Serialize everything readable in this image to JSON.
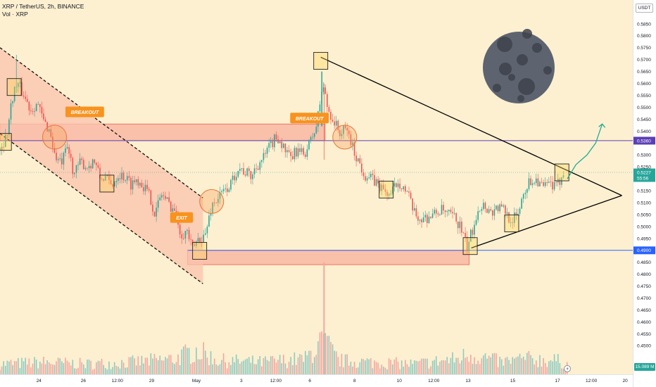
{
  "header": {
    "symbol_line": "XRP / TetherUS, 2h, BINANCE",
    "volume_line": "Vol · XRP"
  },
  "currency_button": "USDT",
  "volume_readout": "15.089 M",
  "annotations": [
    {
      "text": "BREAKOUT",
      "time": 3.0,
      "price": 0.5503
    },
    {
      "text": "BREAKOUT",
      "time": 13.3,
      "price": 0.5477
    },
    {
      "text": "EXIT",
      "time": 7.8,
      "price": 0.506
    }
  ],
  "price_badges": [
    {
      "text": "0.5360",
      "price": 0.536,
      "color": "#5b3fb5"
    },
    {
      "text": "0.4900",
      "price": 0.49,
      "color": "#2962ff"
    }
  ],
  "last_price_badge": {
    "price_text": "0.5227",
    "countdown_text": "55:56",
    "price": 0.5227,
    "color": "#26a69a"
  },
  "colors": {
    "background": "#fdf0d0",
    "zone_fill": "#f8b7a3",
    "zone_stroke": "#f05d4a",
    "channel_fill": "#f9c3ae",
    "up": "#26a69a",
    "down": "#ef5350",
    "vol_up": "#8ccbc3",
    "vol_down": "#f4a5a1",
    "purple_line": "#5b3fb5",
    "blue_line": "#2962ff",
    "moon": "#5d6470",
    "arrow": "#22ab94"
  },
  "icons": {
    "moon": "moon-icon",
    "lightning": "lightning-icon"
  },
  "chart_data": {
    "type": "candlestick",
    "x_unit": "days since 22 April",
    "xlim": [
      0,
      29.0
    ],
    "ylim": [
      0.438,
      0.595
    ],
    "price_ticks": [
      "0.5850",
      "0.5800",
      "0.5750",
      "0.5700",
      "0.5650",
      "0.5600",
      "0.5550",
      "0.5500",
      "0.5450",
      "0.5400",
      "0.5350",
      "0.5300",
      "0.5250",
      "0.5200",
      "0.5150",
      "0.5100",
      "0.5050",
      "0.5000",
      "0.4950",
      "0.4900",
      "0.4850",
      "0.4800",
      "0.4750",
      "0.4700",
      "0.4650",
      "0.4600",
      "0.4550",
      "0.4500"
    ],
    "time_ticks": [
      {
        "label": "24",
        "t": 1.78
      },
      {
        "label": "26",
        "t": 3.82
      },
      {
        "label": "12:00",
        "t": 5.38
      },
      {
        "label": "29",
        "t": 6.95
      },
      {
        "label": "May",
        "t": 9.0
      },
      {
        "label": "3",
        "t": 11.06
      },
      {
        "label": "12:00",
        "t": 12.64
      },
      {
        "label": "6",
        "t": 14.2
      },
      {
        "label": "8",
        "t": 16.25
      },
      {
        "label": "10",
        "t": 18.3
      },
      {
        "label": "12:00",
        "t": 19.88
      },
      {
        "label": "13",
        "t": 21.45
      },
      {
        "label": "15",
        "t": 23.5
      },
      {
        "label": "17",
        "t": 25.55
      },
      {
        "label": "12:00",
        "t": 27.1
      },
      {
        "label": "20",
        "t": 28.65
      }
    ],
    "close_path": [
      [
        0.0,
        0.533
      ],
      [
        0.3,
        0.538
      ],
      [
        0.6,
        0.556
      ],
      [
        0.8,
        0.56
      ],
      [
        1.1,
        0.555
      ],
      [
        1.4,
        0.549
      ],
      [
        1.7,
        0.552
      ],
      [
        2.0,
        0.544
      ],
      [
        2.3,
        0.54
      ],
      [
        2.5,
        0.53
      ],
      [
        2.8,
        0.526
      ],
      [
        3.1,
        0.533
      ],
      [
        3.4,
        0.522
      ],
      [
        3.7,
        0.527
      ],
      [
        4.0,
        0.525
      ],
      [
        4.3,
        0.528
      ],
      [
        4.6,
        0.52
      ],
      [
        4.8,
        0.521
      ],
      [
        5.1,
        0.517
      ],
      [
        5.4,
        0.522
      ],
      [
        5.7,
        0.521
      ],
      [
        6.0,
        0.518
      ],
      [
        6.3,
        0.52
      ],
      [
        6.6,
        0.517
      ],
      [
        6.9,
        0.512
      ],
      [
        7.1,
        0.505
      ],
      [
        7.4,
        0.514
      ],
      [
        7.7,
        0.51
      ],
      [
        8.0,
        0.507
      ],
      [
        8.3,
        0.497
      ],
      [
        8.6,
        0.498
      ],
      [
        8.8,
        0.49
      ],
      [
        9.1,
        0.495
      ],
      [
        9.4,
        0.496
      ],
      [
        9.7,
        0.509
      ],
      [
        10.0,
        0.512
      ],
      [
        10.3,
        0.515
      ],
      [
        10.6,
        0.518
      ],
      [
        10.9,
        0.525
      ],
      [
        11.2,
        0.523
      ],
      [
        11.5,
        0.521
      ],
      [
        11.8,
        0.526
      ],
      [
        12.1,
        0.529
      ],
      [
        12.4,
        0.534
      ],
      [
        12.7,
        0.538
      ],
      [
        13.0,
        0.533
      ],
      [
        13.3,
        0.528
      ],
      [
        13.6,
        0.532
      ],
      [
        13.9,
        0.53
      ],
      [
        14.2,
        0.535
      ],
      [
        14.5,
        0.542
      ],
      [
        14.8,
        0.56
      ],
      [
        15.0,
        0.55
      ],
      [
        15.3,
        0.544
      ],
      [
        15.6,
        0.539
      ],
      [
        15.9,
        0.541
      ],
      [
        16.2,
        0.532
      ],
      [
        16.5,
        0.526
      ],
      [
        16.7,
        0.522
      ],
      [
        17.0,
        0.52
      ],
      [
        17.3,
        0.518
      ],
      [
        17.6,
        0.515
      ],
      [
        17.9,
        0.513
      ],
      [
        18.2,
        0.519
      ],
      [
        18.4,
        0.518
      ],
      [
        18.7,
        0.513
      ],
      [
        19.0,
        0.505
      ],
      [
        19.3,
        0.503
      ],
      [
        19.6,
        0.504
      ],
      [
        19.9,
        0.505
      ],
      [
        20.2,
        0.507
      ],
      [
        20.5,
        0.505
      ],
      [
        20.8,
        0.504
      ],
      [
        21.1,
        0.5
      ],
      [
        21.4,
        0.491
      ],
      [
        21.7,
        0.5
      ],
      [
        21.9,
        0.508
      ],
      [
        22.2,
        0.509
      ],
      [
        22.5,
        0.506
      ],
      [
        22.8,
        0.508
      ],
      [
        23.1,
        0.507
      ],
      [
        23.4,
        0.503
      ],
      [
        23.7,
        0.504
      ],
      [
        24.0,
        0.515
      ],
      [
        24.3,
        0.519
      ],
      [
        24.6,
        0.52
      ],
      [
        24.9,
        0.516
      ],
      [
        25.2,
        0.518
      ],
      [
        25.5,
        0.516
      ],
      [
        25.8,
        0.5227
      ]
    ],
    "volume_path": [
      [
        0,
        0.3
      ],
      [
        2,
        0.35
      ],
      [
        4,
        0.3
      ],
      [
        6,
        0.35
      ],
      [
        8,
        0.45
      ],
      [
        9,
        0.7
      ],
      [
        10,
        0.4
      ],
      [
        12,
        0.35
      ],
      [
        14,
        0.45
      ],
      [
        14.8,
        1.0
      ],
      [
        15.5,
        0.4
      ],
      [
        17,
        0.35
      ],
      [
        19,
        0.3
      ],
      [
        21,
        0.45
      ],
      [
        21.5,
        0.6
      ],
      [
        23,
        0.35
      ],
      [
        24,
        0.45
      ],
      [
        25.5,
        0.4
      ],
      [
        26,
        0.3
      ]
    ],
    "volume_spike": {
      "time": 14.85,
      "top_price": 0.485
    },
    "volume_zone_top_price": 0.462,
    "zones": [
      {
        "name": "upper-supply-zone",
        "t1": 0.0,
        "t2": 14.9,
        "p1": 0.536,
        "p2": 0.543
      },
      {
        "name": "lower-demand-zone",
        "t1": 8.6,
        "t2": 21.5,
        "p1": 0.484,
        "p2": 0.49
      }
    ],
    "channel": {
      "upper": [
        [
          0.0,
          0.575
        ],
        [
          9.3,
          0.512
        ]
      ],
      "lower": [
        [
          0.0,
          0.539
        ],
        [
          9.3,
          0.476
        ]
      ],
      "fill_until_price": 0.476
    },
    "triangle": {
      "upper_start": [
        14.7,
        0.571
      ],
      "lower_start": [
        21.6,
        0.491
      ],
      "apex": [
        28.5,
        0.513
      ]
    },
    "horizontal_lines": [
      {
        "name": "purple-level-line",
        "price": 0.536,
        "t1": 0.0,
        "color": "#5b3fb5"
      },
      {
        "name": "blue-level-line",
        "price": 0.49,
        "t1": 8.6,
        "color": "#2962ff"
      }
    ],
    "highlight_boxes": [
      {
        "time": 0.2,
        "price": 0.5355
      },
      {
        "time": 0.65,
        "price": 0.5585
      },
      {
        "time": 4.9,
        "price": 0.518
      },
      {
        "time": 9.15,
        "price": 0.4898
      },
      {
        "time": 14.7,
        "price": 0.5695
      },
      {
        "time": 17.7,
        "price": 0.5155
      },
      {
        "time": 21.55,
        "price": 0.4918
      },
      {
        "time": 23.45,
        "price": 0.5013
      },
      {
        "time": 25.75,
        "price": 0.5227
      }
    ],
    "circles": [
      {
        "time": 2.5,
        "price": 0.5375
      },
      {
        "time": 9.7,
        "price": 0.5105
      },
      {
        "time": 15.8,
        "price": 0.5375
      }
    ],
    "forecast_arrow": [
      [
        26.0,
        0.52
      ],
      [
        26.4,
        0.526
      ],
      [
        26.9,
        0.53
      ],
      [
        27.3,
        0.535
      ],
      [
        27.6,
        0.543
      ]
    ]
  }
}
